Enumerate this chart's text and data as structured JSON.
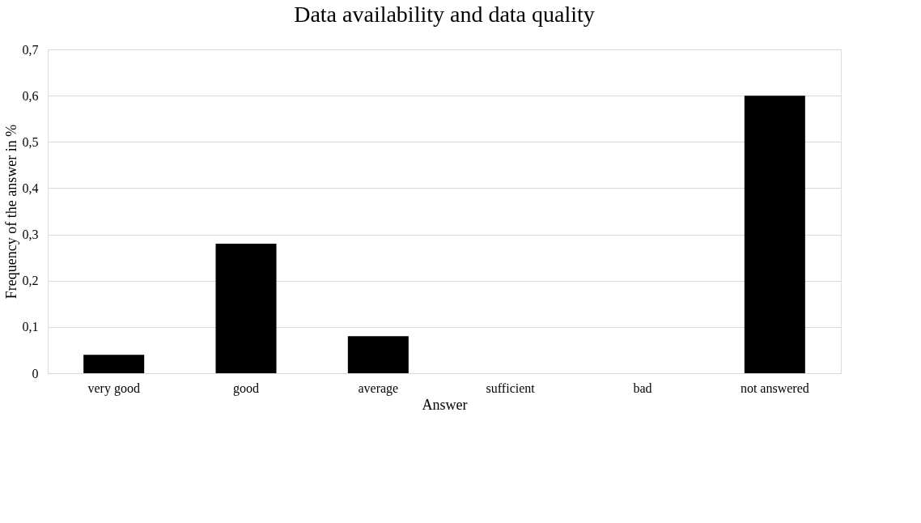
{
  "chart_data": {
    "type": "bar",
    "title": "Data availability and data quality",
    "xlabel": "Answer",
    "ylabel": "Frequency of the answer in %",
    "categories": [
      "very good",
      "good",
      "average",
      "sufficient",
      "bad",
      "not answered"
    ],
    "values": [
      0.04,
      0.28,
      0.08,
      0,
      0,
      0.6
    ],
    "color": "#000000",
    "ylim": [
      0,
      0.7
    ],
    "yticks": [
      0,
      {
        "value": 0.1,
        "label": "0,1"
      },
      {
        "value": 0.2,
        "label": "0,2"
      },
      {
        "value": 0.3,
        "label": "0,3"
      },
      {
        "value": 0.4,
        "label": "0,4"
      },
      {
        "value": 0.5,
        "label": "0,5"
      },
      {
        "value": 0.6,
        "label": "0,6"
      },
      {
        "value": 0.7,
        "label": "0,7"
      }
    ],
    "grid": "y"
  }
}
